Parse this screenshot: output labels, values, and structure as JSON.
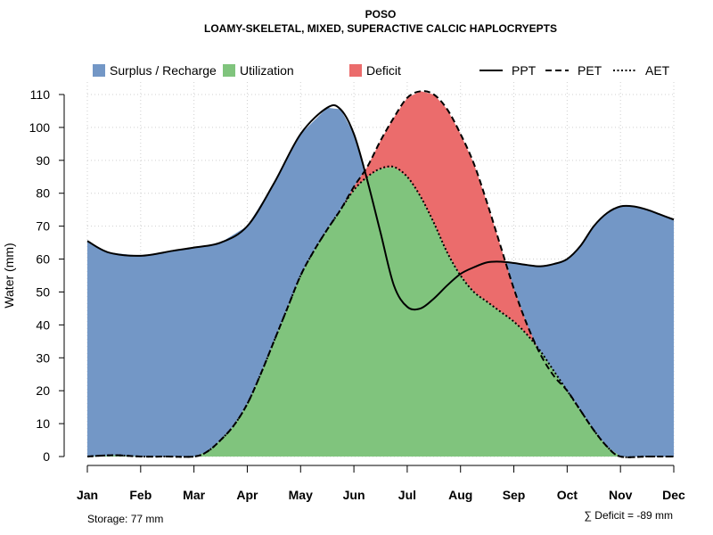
{
  "chart_data": {
    "type": "area",
    "title": "POSO",
    "subtitle": "LOAMY-SKELETAL, MIXED, SUPERACTIVE CALCIC HAPLOCRYEPTS",
    "ylabel": "Water (mm)",
    "xlabel": "",
    "ylim": [
      0,
      110
    ],
    "yticks": [
      0,
      10,
      20,
      30,
      40,
      50,
      60,
      70,
      80,
      90,
      100,
      110
    ],
    "categories": [
      "Jan",
      "Feb",
      "Mar",
      "Apr",
      "May",
      "Jun",
      "Jul",
      "Aug",
      "Sep",
      "Oct",
      "Nov",
      "Dec"
    ],
    "grid": true,
    "legend_position": "top",
    "series": [
      {
        "name": "PPT",
        "style": "solid",
        "x": [
          1,
          1.4,
          2,
          2.6,
          3,
          3.5,
          4,
          4.5,
          5,
          5.5,
          5.75,
          6,
          6.25,
          6.5,
          6.75,
          7,
          7.25,
          7.5,
          7.75,
          8,
          8.25,
          8.5,
          8.75,
          9,
          9.25,
          9.5,
          9.75,
          10,
          10.25,
          10.5,
          10.75,
          11,
          11.25,
          11.5,
          11.75,
          12
        ],
        "values": [
          65.5,
          62,
          61,
          62.5,
          63.5,
          65,
          70,
          83,
          98,
          106,
          105.5,
          98,
          84,
          68,
          52,
          45.5,
          45,
          48,
          52,
          55.5,
          57.5,
          59,
          59.2,
          58.8,
          58.2,
          57.8,
          58.5,
          60,
          64,
          70,
          74,
          76,
          76,
          75,
          73.5,
          72
        ]
      },
      {
        "name": "PET",
        "style": "dashed",
        "x": [
          1,
          1.5,
          2,
          2.5,
          3,
          3.25,
          3.5,
          3.75,
          4,
          4.25,
          4.5,
          4.75,
          5,
          5.25,
          5.5,
          5.75,
          6,
          6.25,
          6.5,
          6.75,
          7,
          7.25,
          7.5,
          7.75,
          8,
          8.25,
          8.5,
          8.75,
          9,
          9.25,
          9.5,
          9.75,
          10,
          10.25,
          10.5,
          10.75,
          11,
          11.5,
          12
        ],
        "values": [
          0,
          0.4,
          0,
          0,
          0,
          1.5,
          5,
          9.5,
          16,
          25,
          35,
          45,
          55,
          62.5,
          69,
          75,
          82,
          88,
          96,
          103,
          109,
          111,
          110,
          105.5,
          98,
          89,
          77,
          64,
          51,
          40,
          31,
          24.5,
          20,
          14,
          8,
          3,
          0,
          0,
          0
        ]
      },
      {
        "name": "AET",
        "style": "dotted",
        "x": [
          1,
          1.5,
          2,
          2.5,
          3,
          3.25,
          3.5,
          3.75,
          4,
          4.25,
          4.5,
          4.75,
          5,
          5.25,
          5.5,
          5.75,
          6,
          6.25,
          6.5,
          6.75,
          7,
          7.25,
          7.5,
          7.75,
          8,
          8.25,
          8.5,
          8.75,
          9,
          9.25,
          9.5,
          9.75,
          10,
          10.25,
          10.5,
          10.75,
          11,
          11.5,
          12
        ],
        "values": [
          0,
          0.4,
          0,
          0,
          0,
          1.5,
          5,
          9.5,
          16,
          25,
          35,
          45,
          55,
          62.5,
          69,
          75,
          81,
          85,
          87.5,
          88,
          85,
          79,
          71,
          62,
          55,
          50,
          47,
          44,
          41,
          37,
          32,
          26,
          20,
          14,
          8,
          3,
          0,
          0,
          0
        ]
      }
    ],
    "areas": [
      {
        "name": "Surplus / Recharge",
        "color": "#7397c6",
        "between": [
          "PPT",
          "PET"
        ],
        "where": "PPT above PET"
      },
      {
        "name": "Utilization",
        "color": "#80c47d",
        "between": [
          "AET",
          "baseline"
        ]
      },
      {
        "name": "Deficit",
        "color": "#eb6c6c",
        "between": [
          "PET",
          "AET"
        ],
        "where": "PET above AET"
      }
    ],
    "legend": {
      "fills": [
        "Surplus / Recharge",
        "Utilization",
        "Deficit"
      ],
      "lines": [
        "PPT",
        "PET",
        "AET"
      ]
    }
  },
  "footer": {
    "storage": "Storage: 77 mm",
    "deficit": "∑ Deficit = -89 mm"
  }
}
